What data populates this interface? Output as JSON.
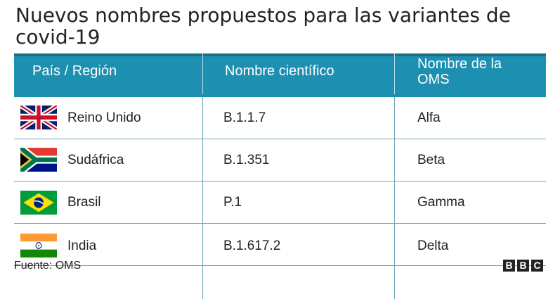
{
  "title": "Nuevos nombres propuestos para las variantes de covid-19",
  "headers": {
    "country": "País / Región",
    "scientific": "Nombre científico",
    "who": "Nombre de la OMS"
  },
  "rows": [
    {
      "country": "Reino Unido",
      "scientific": "B.1.1.7",
      "who": "Alfa",
      "flag": "uk-flag"
    },
    {
      "country": "Sudáfrica",
      "scientific": "B.1.351",
      "who": "Beta",
      "flag": "south-africa-flag"
    },
    {
      "country": "Brasil",
      "scientific": "P.1",
      "who": "Gamma",
      "flag": "brazil-flag"
    },
    {
      "country": "India",
      "scientific": "B.1.617.2",
      "who": "Delta",
      "flag": "india-flag"
    }
  ],
  "source": "Fuente: OMS",
  "logo": [
    "B",
    "B",
    "C"
  ],
  "colors": {
    "header_bg": "#1d8fb0",
    "header_text": "#ffffff",
    "divider": "#6fa6b8"
  }
}
